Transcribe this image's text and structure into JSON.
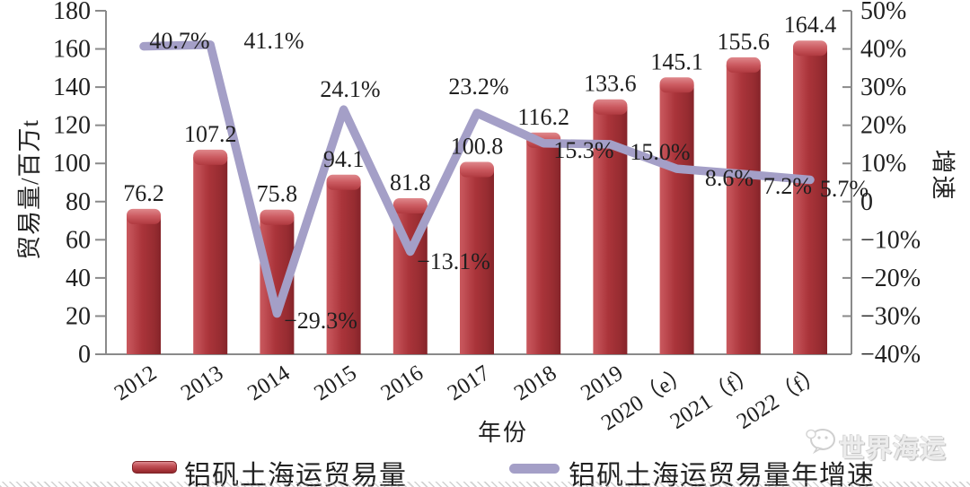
{
  "chart_data": {
    "type": "bar",
    "combo": "bar+line",
    "title": "",
    "categories": [
      "2012",
      "2013",
      "2014",
      "2015",
      "2016",
      "2017",
      "2018",
      "2019",
      "2020（e）",
      "2021（f）",
      "2022（f）"
    ],
    "series": [
      {
        "name": "铝矾土海运贸易量",
        "type": "bar",
        "axis": "left",
        "unit": "百万t",
        "color": "#a93439",
        "values": [
          76.2,
          107.2,
          75.8,
          94.1,
          81.8,
          100.8,
          116.2,
          133.6,
          145.1,
          155.6,
          164.4
        ],
        "labels": [
          "76.2",
          "107.2",
          "75.8",
          "94.1",
          "81.8",
          "100.8",
          "116.2",
          "133.6",
          "145.1",
          "155.6",
          "164.4"
        ]
      },
      {
        "name": "铝矾土海运贸易量年增速",
        "type": "line",
        "axis": "right",
        "unit": "%",
        "color": "#a49fc7",
        "values": [
          40.7,
          41.1,
          -29.3,
          24.1,
          -13.1,
          23.2,
          15.3,
          15.0,
          8.6,
          7.2,
          5.7
        ],
        "labels": [
          "40.7%",
          "41.1%",
          "−29.3%",
          "24.1%",
          "−13.1%",
          "23.2%",
          "15.3%",
          "15.0%",
          "8.6%",
          "7.2%",
          "5.7%"
        ]
      }
    ],
    "left_axis": {
      "title": "贸易量/百万t",
      "min": 0,
      "max": 180,
      "step": 20,
      "tick_labels": [
        "0",
        "20",
        "40",
        "60",
        "80",
        "100",
        "120",
        "140",
        "160",
        "180"
      ]
    },
    "right_axis": {
      "title": "增速",
      "min": -40,
      "max": 50,
      "step": 10,
      "tick_labels": [
        "−40%",
        "−30%",
        "−20%",
        "−10%",
        "0",
        "10%",
        "20%",
        "30%",
        "40%",
        "50%"
      ]
    },
    "x_axis": {
      "title": "年份"
    },
    "legend": [
      {
        "label": "铝矾土海运贸易量"
      },
      {
        "label": "铝矾土海运贸易量年增速"
      }
    ],
    "grid": "off",
    "legend_position": "bottom"
  },
  "watermark": {
    "text": "世界海运"
  }
}
